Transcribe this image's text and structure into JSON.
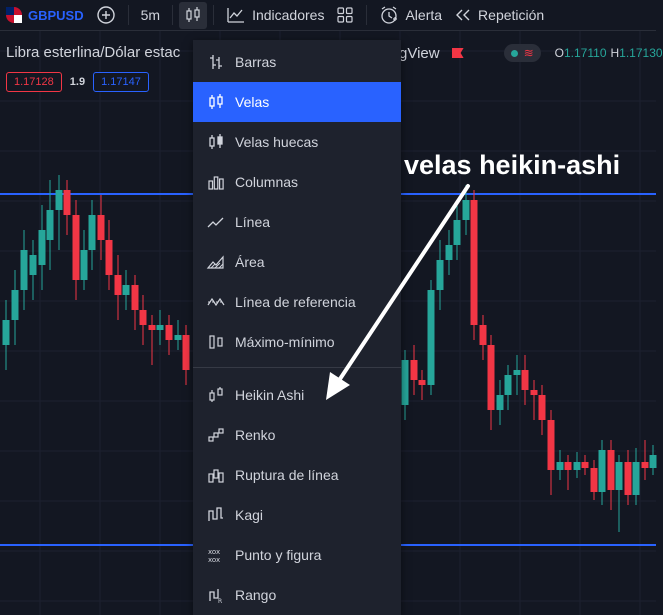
{
  "toolbar": {
    "symbol": "GBPUSD",
    "interval": "5m",
    "indicators_label": "Indicadores",
    "alert_label": "Alerta",
    "replay_label": "Repetición"
  },
  "legend": {
    "title": "Libra esterlina/Dólar estac",
    "source_suffix": "gView",
    "open_label": "O",
    "open_value": "1.17110",
    "high_label": "H",
    "high_value": "1.17130"
  },
  "prices": {
    "bid": "1.17128",
    "spread": "1.9",
    "ask": "1.17147"
  },
  "chart_menu": {
    "items": [
      {
        "label": "Barras",
        "icon": "bars-icon"
      },
      {
        "label": "Velas",
        "icon": "candles-icon"
      },
      {
        "label": "Velas huecas",
        "icon": "hollow-candles-icon"
      },
      {
        "label": "Columnas",
        "icon": "columns-icon"
      },
      {
        "label": "Línea",
        "icon": "line-icon"
      },
      {
        "label": "Área",
        "icon": "area-icon"
      },
      {
        "label": "Línea de referencia",
        "icon": "baseline-icon"
      },
      {
        "label": "Máximo-mínimo",
        "icon": "high-low-icon"
      },
      {
        "label": "Heikin Ashi",
        "icon": "heikin-ashi-icon"
      },
      {
        "label": "Renko",
        "icon": "renko-icon"
      },
      {
        "label": "Ruptura de línea",
        "icon": "line-break-icon"
      },
      {
        "label": "Kagi",
        "icon": "kagi-icon"
      },
      {
        "label": "Punto y figura",
        "icon": "point-figure-icon"
      },
      {
        "label": "Rango",
        "icon": "range-icon"
      }
    ],
    "selected": "Velas"
  },
  "annotation": {
    "text": "velas heikin-ashi"
  },
  "colors": {
    "up": "#26a69a",
    "down": "#f23645",
    "accent": "#2962ff",
    "background": "#131722"
  }
}
